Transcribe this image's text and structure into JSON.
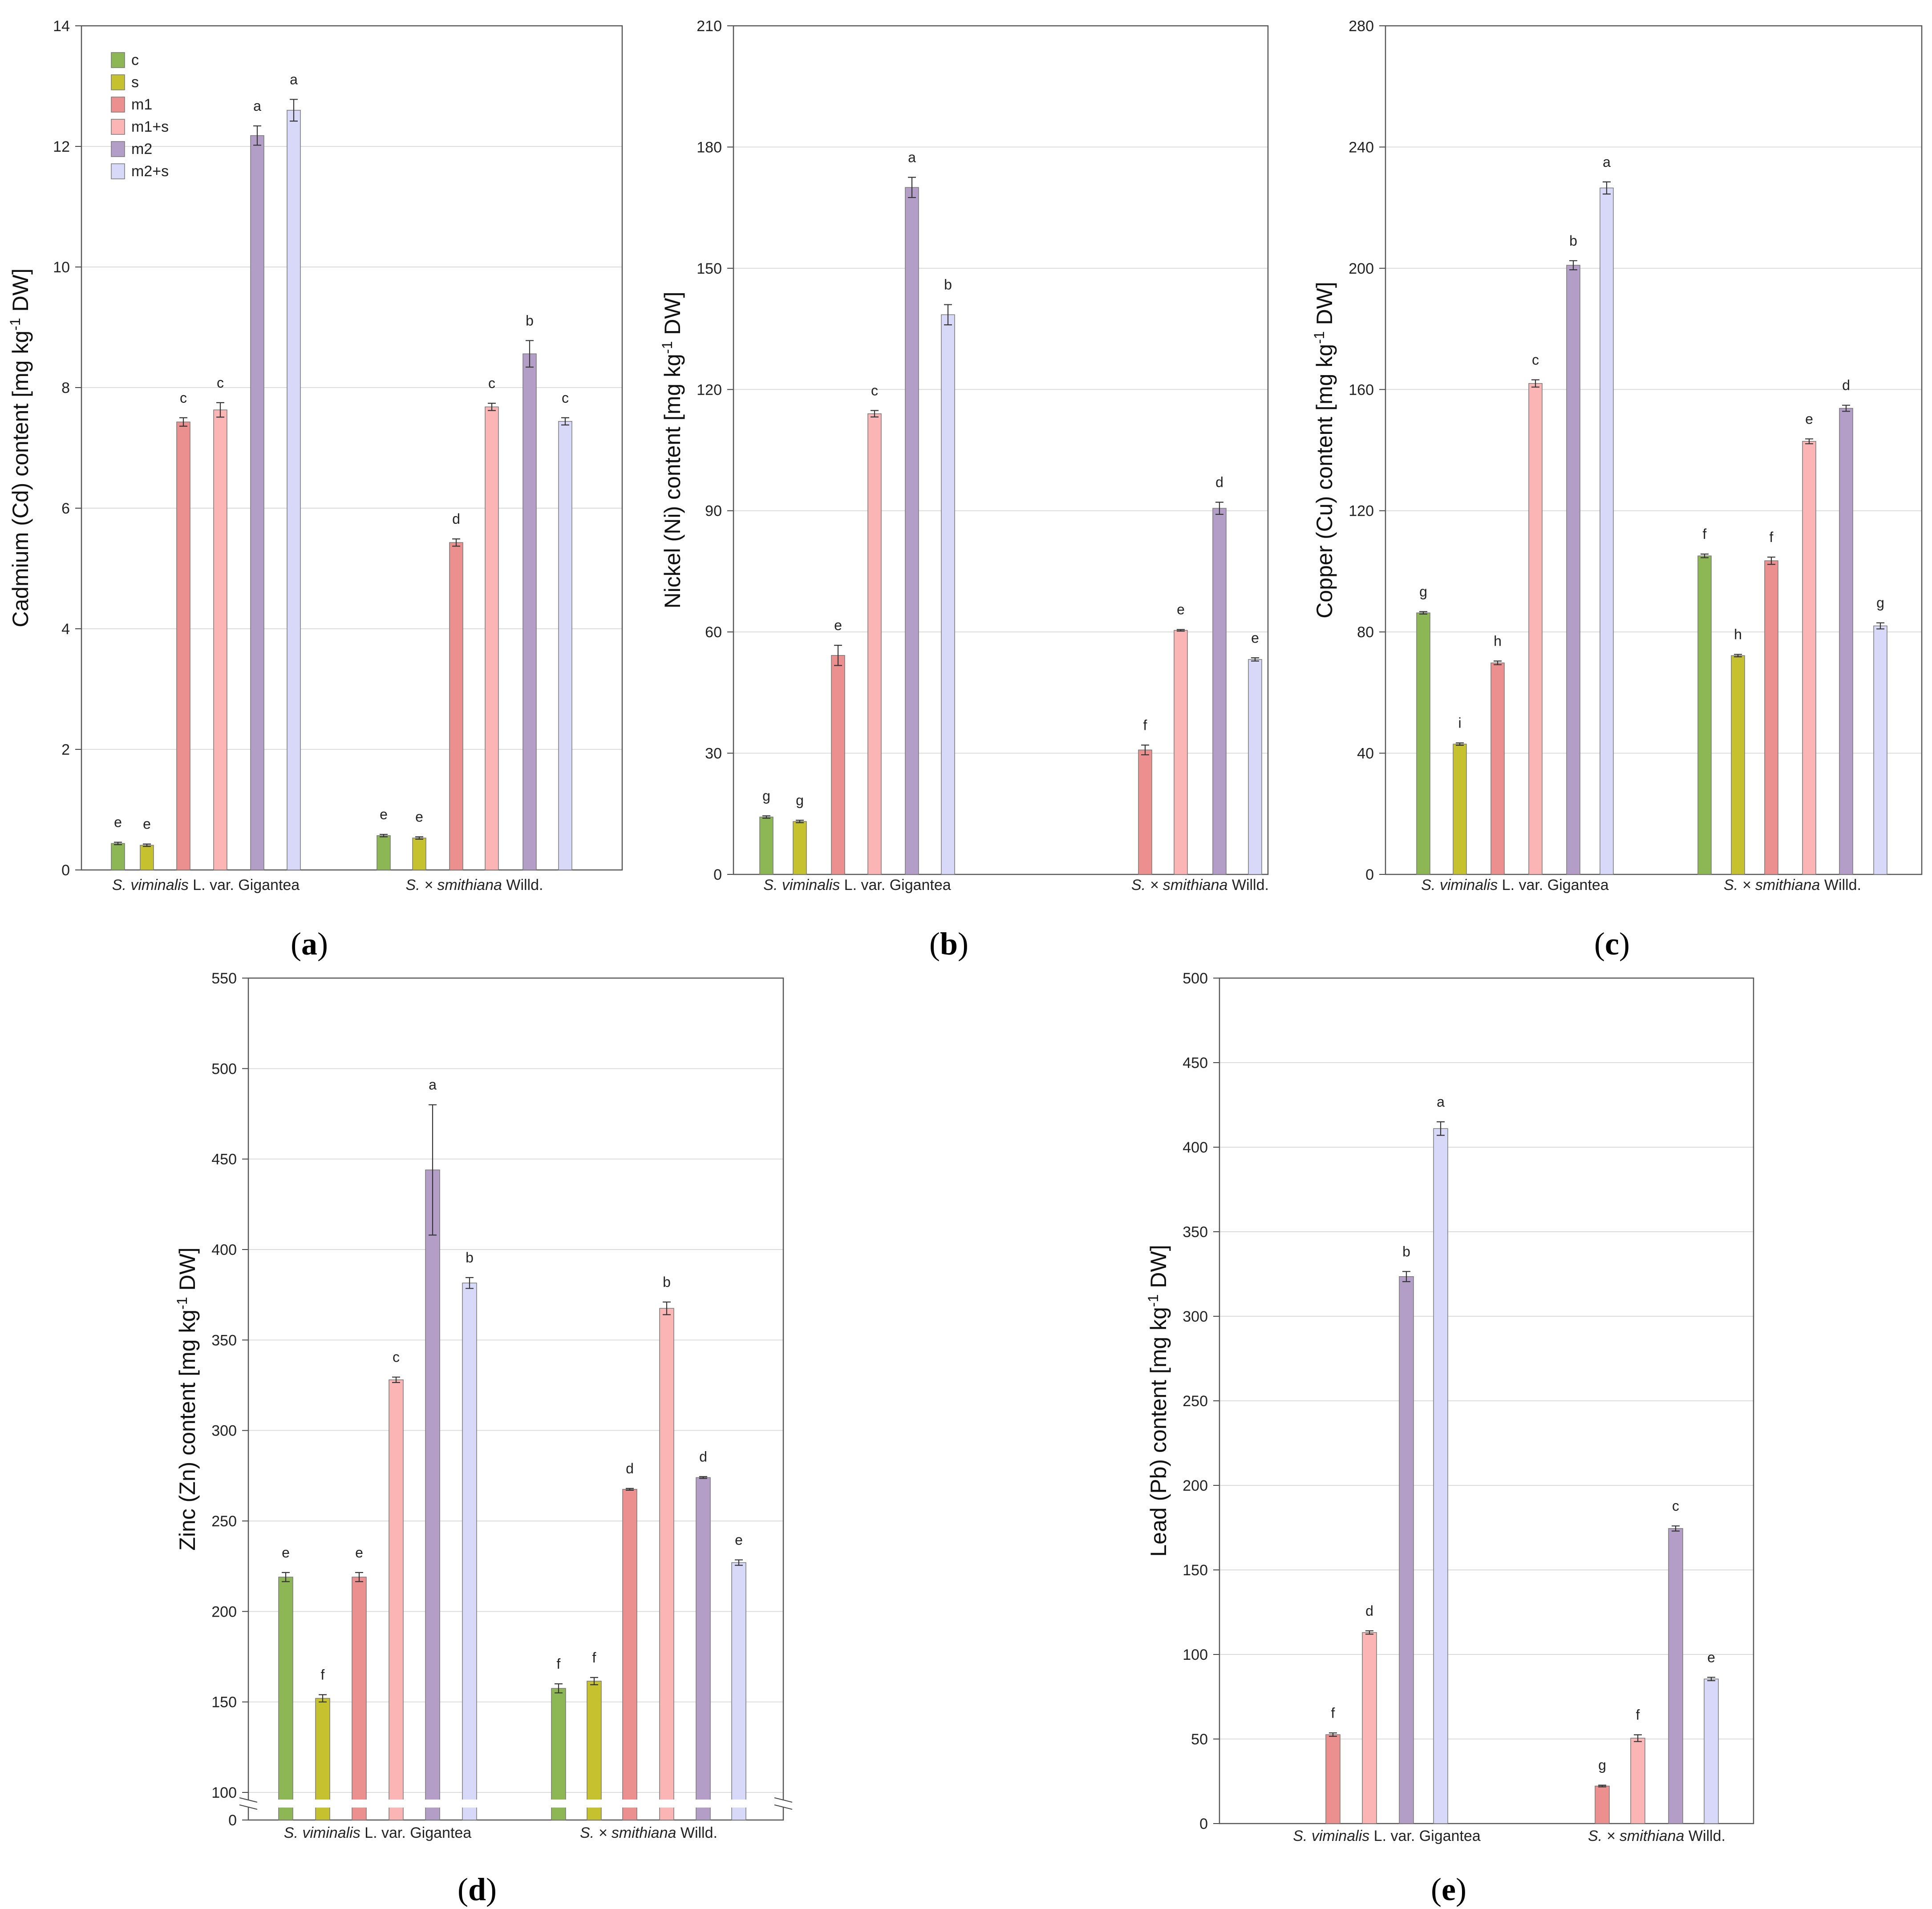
{
  "figure": {
    "captions": [
      "(a)",
      "(b)",
      "(c)",
      "(d)",
      "(e)"
    ],
    "groups": [
      {
        "italic": "S. viminalis",
        "rest": " L. var. Gigantea"
      },
      {
        "italic": "S. × smithiana",
        "rest": " Willd."
      }
    ],
    "legend": {
      "labels": [
        "c",
        "s",
        "m1",
        "m1+s",
        "m2",
        "m2+s"
      ],
      "colors": [
        "#8db654",
        "#c5c12f",
        "#eb8f8f",
        "#fcb5b5",
        "#b39ec8",
        "#d8d8f8"
      ]
    }
  },
  "chart_data": [
    {
      "id": "a",
      "type": "bar",
      "ylabel_pre": "Cadmium (Cd) content [mg kg",
      "ylabel_sup": "-1",
      "ylabel_post": " DW]",
      "ylim": [
        0,
        14
      ],
      "yticks": [
        0,
        2,
        4,
        6,
        8,
        10,
        12,
        14
      ],
      "series": [
        {
          "name": "c",
          "values": [
            0.44,
            0.57
          ],
          "errors": [
            0.02,
            0.02
          ],
          "letters": [
            "e",
            "e"
          ]
        },
        {
          "name": "s",
          "values": [
            0.41,
            0.53
          ],
          "errors": [
            0.02,
            0.02
          ],
          "letters": [
            "e",
            "e"
          ]
        },
        {
          "name": "m1",
          "values": [
            7.43,
            5.43
          ],
          "errors": [
            0.07,
            0.06
          ],
          "letters": [
            "c",
            "d"
          ]
        },
        {
          "name": "m1+s",
          "values": [
            7.63,
            7.68
          ],
          "errors": [
            0.12,
            0.06
          ],
          "letters": [
            "c",
            "c"
          ]
        },
        {
          "name": "m2",
          "values": [
            12.18,
            8.56
          ],
          "errors": [
            0.16,
            0.22
          ],
          "letters": [
            "a",
            "b"
          ]
        },
        {
          "name": "m2+s",
          "values": [
            12.6,
            7.44
          ],
          "errors": [
            0.18,
            0.06
          ],
          "letters": [
            "a",
            "c"
          ]
        }
      ]
    },
    {
      "id": "b",
      "type": "bar",
      "ylabel_pre": "Nickel (Ni) content [mg kg",
      "ylabel_sup": "-1",
      "ylabel_post": " DW]",
      "ylim": [
        0,
        210
      ],
      "yticks": [
        0,
        30,
        60,
        90,
        120,
        150,
        180,
        210
      ],
      "series": [
        {
          "name": "c",
          "values": [
            14.2,
            null
          ],
          "errors": [
            0.3,
            0
          ],
          "letters": [
            "g",
            ""
          ]
        },
        {
          "name": "s",
          "values": [
            13.1,
            null
          ],
          "errors": [
            0.3,
            0
          ],
          "letters": [
            "g",
            ""
          ]
        },
        {
          "name": "m1",
          "values": [
            54.2,
            30.8
          ],
          "errors": [
            2.5,
            1.2
          ],
          "letters": [
            "e",
            "f"
          ]
        },
        {
          "name": "m1+s",
          "values": [
            114.0,
            60.4
          ],
          "errors": [
            0.8,
            0.2
          ],
          "letters": [
            "c",
            "e"
          ]
        },
        {
          "name": "m2",
          "values": [
            170.0,
            90.6
          ],
          "errors": [
            2.5,
            1.5
          ],
          "letters": [
            "a",
            "d"
          ]
        },
        {
          "name": "m2+s",
          "values": [
            138.5,
            53.2
          ],
          "errors": [
            2.5,
            0.4
          ],
          "letters": [
            "b",
            "e"
          ]
        }
      ]
    },
    {
      "id": "c",
      "type": "bar",
      "ylabel_pre": "Copper (Cu) content [mg kg",
      "ylabel_sup": "-1",
      "ylabel_post": " DW]",
      "ylim": [
        0,
        280
      ],
      "yticks": [
        0,
        40,
        80,
        120,
        160,
        200,
        240,
        280
      ],
      "series": [
        {
          "name": "c",
          "values": [
            86.3,
            105.1
          ],
          "errors": [
            0.4,
            0.6
          ],
          "letters": [
            "g",
            "f"
          ]
        },
        {
          "name": "s",
          "values": [
            43.0,
            72.2
          ],
          "errors": [
            0.4,
            0.4
          ],
          "letters": [
            "i",
            "h"
          ]
        },
        {
          "name": "m1",
          "values": [
            69.8,
            103.5
          ],
          "errors": [
            0.6,
            1.2
          ],
          "letters": [
            "h",
            "f"
          ]
        },
        {
          "name": "m1+s",
          "values": [
            162.0,
            142.9
          ],
          "errors": [
            1.2,
            0.8
          ],
          "letters": [
            "c",
            "e"
          ]
        },
        {
          "name": "m2",
          "values": [
            201.0,
            153.8
          ],
          "errors": [
            1.5,
            1.0
          ],
          "letters": [
            "b",
            "d"
          ]
        },
        {
          "name": "m2+s",
          "values": [
            226.5,
            82.0
          ],
          "errors": [
            2.0,
            1.0
          ],
          "letters": [
            "a",
            "g"
          ]
        }
      ]
    },
    {
      "id": "d",
      "type": "bar",
      "ylabel_pre": "Zinc (Zn) content [mg kg",
      "ylabel_sup": "-1",
      "ylabel_post": " DW]",
      "ylim": [
        100,
        550
      ],
      "yticks": [
        0,
        100,
        150,
        200,
        250,
        300,
        350,
        400,
        450,
        500,
        550
      ],
      "axis_break": true,
      "series": [
        {
          "name": "c",
          "values": [
            219.0,
            157.5
          ],
          "errors": [
            2.5,
            2.5
          ],
          "letters": [
            "e",
            "f"
          ]
        },
        {
          "name": "s",
          "values": [
            152.0,
            161.5
          ],
          "errors": [
            2.0,
            2.0
          ],
          "letters": [
            "f",
            "f"
          ]
        },
        {
          "name": "m1",
          "values": [
            219.0,
            267.5
          ],
          "errors": [
            2.5,
            0.5
          ],
          "letters": [
            "e",
            "d"
          ]
        },
        {
          "name": "m1+s",
          "values": [
            328.0,
            367.5
          ],
          "errors": [
            1.5,
            3.5
          ],
          "letters": [
            "c",
            "b"
          ]
        },
        {
          "name": "m2",
          "values": [
            444.0,
            274.0
          ],
          "errors": [
            36.0,
            0.5
          ],
          "letters": [
            "a",
            "d"
          ]
        },
        {
          "name": "m2+s",
          "values": [
            381.5,
            227.0
          ],
          "errors": [
            3.0,
            1.5
          ],
          "letters": [
            "b",
            "e"
          ]
        }
      ]
    },
    {
      "id": "e",
      "type": "bar",
      "ylabel_pre": "Lead (Pb) content [mg kg",
      "ylabel_sup": "-1",
      "ylabel_post": " DW]",
      "ylim": [
        0,
        500
      ],
      "yticks": [
        0,
        50,
        100,
        150,
        200,
        250,
        300,
        350,
        400,
        450,
        500
      ],
      "series": [
        {
          "name": "c",
          "values": [
            null,
            null
          ],
          "errors": [
            0,
            0
          ],
          "letters": [
            "",
            ""
          ]
        },
        {
          "name": "s",
          "values": [
            null,
            null
          ],
          "errors": [
            0,
            0
          ],
          "letters": [
            "",
            ""
          ]
        },
        {
          "name": "m1",
          "values": [
            52.6,
            22.2
          ],
          "errors": [
            1.0,
            0.5
          ],
          "letters": [
            "f",
            "g"
          ]
        },
        {
          "name": "m1+s",
          "values": [
            113.0,
            50.5
          ],
          "errors": [
            1.0,
            2.0
          ],
          "letters": [
            "d",
            "f"
          ]
        },
        {
          "name": "m2",
          "values": [
            323.5,
            174.5
          ],
          "errors": [
            3.0,
            1.5
          ],
          "letters": [
            "b",
            "c"
          ]
        },
        {
          "name": "m2+s",
          "values": [
            411.0,
            85.5
          ],
          "errors": [
            4.0,
            1.0
          ],
          "letters": [
            "a",
            "e"
          ]
        }
      ]
    }
  ]
}
